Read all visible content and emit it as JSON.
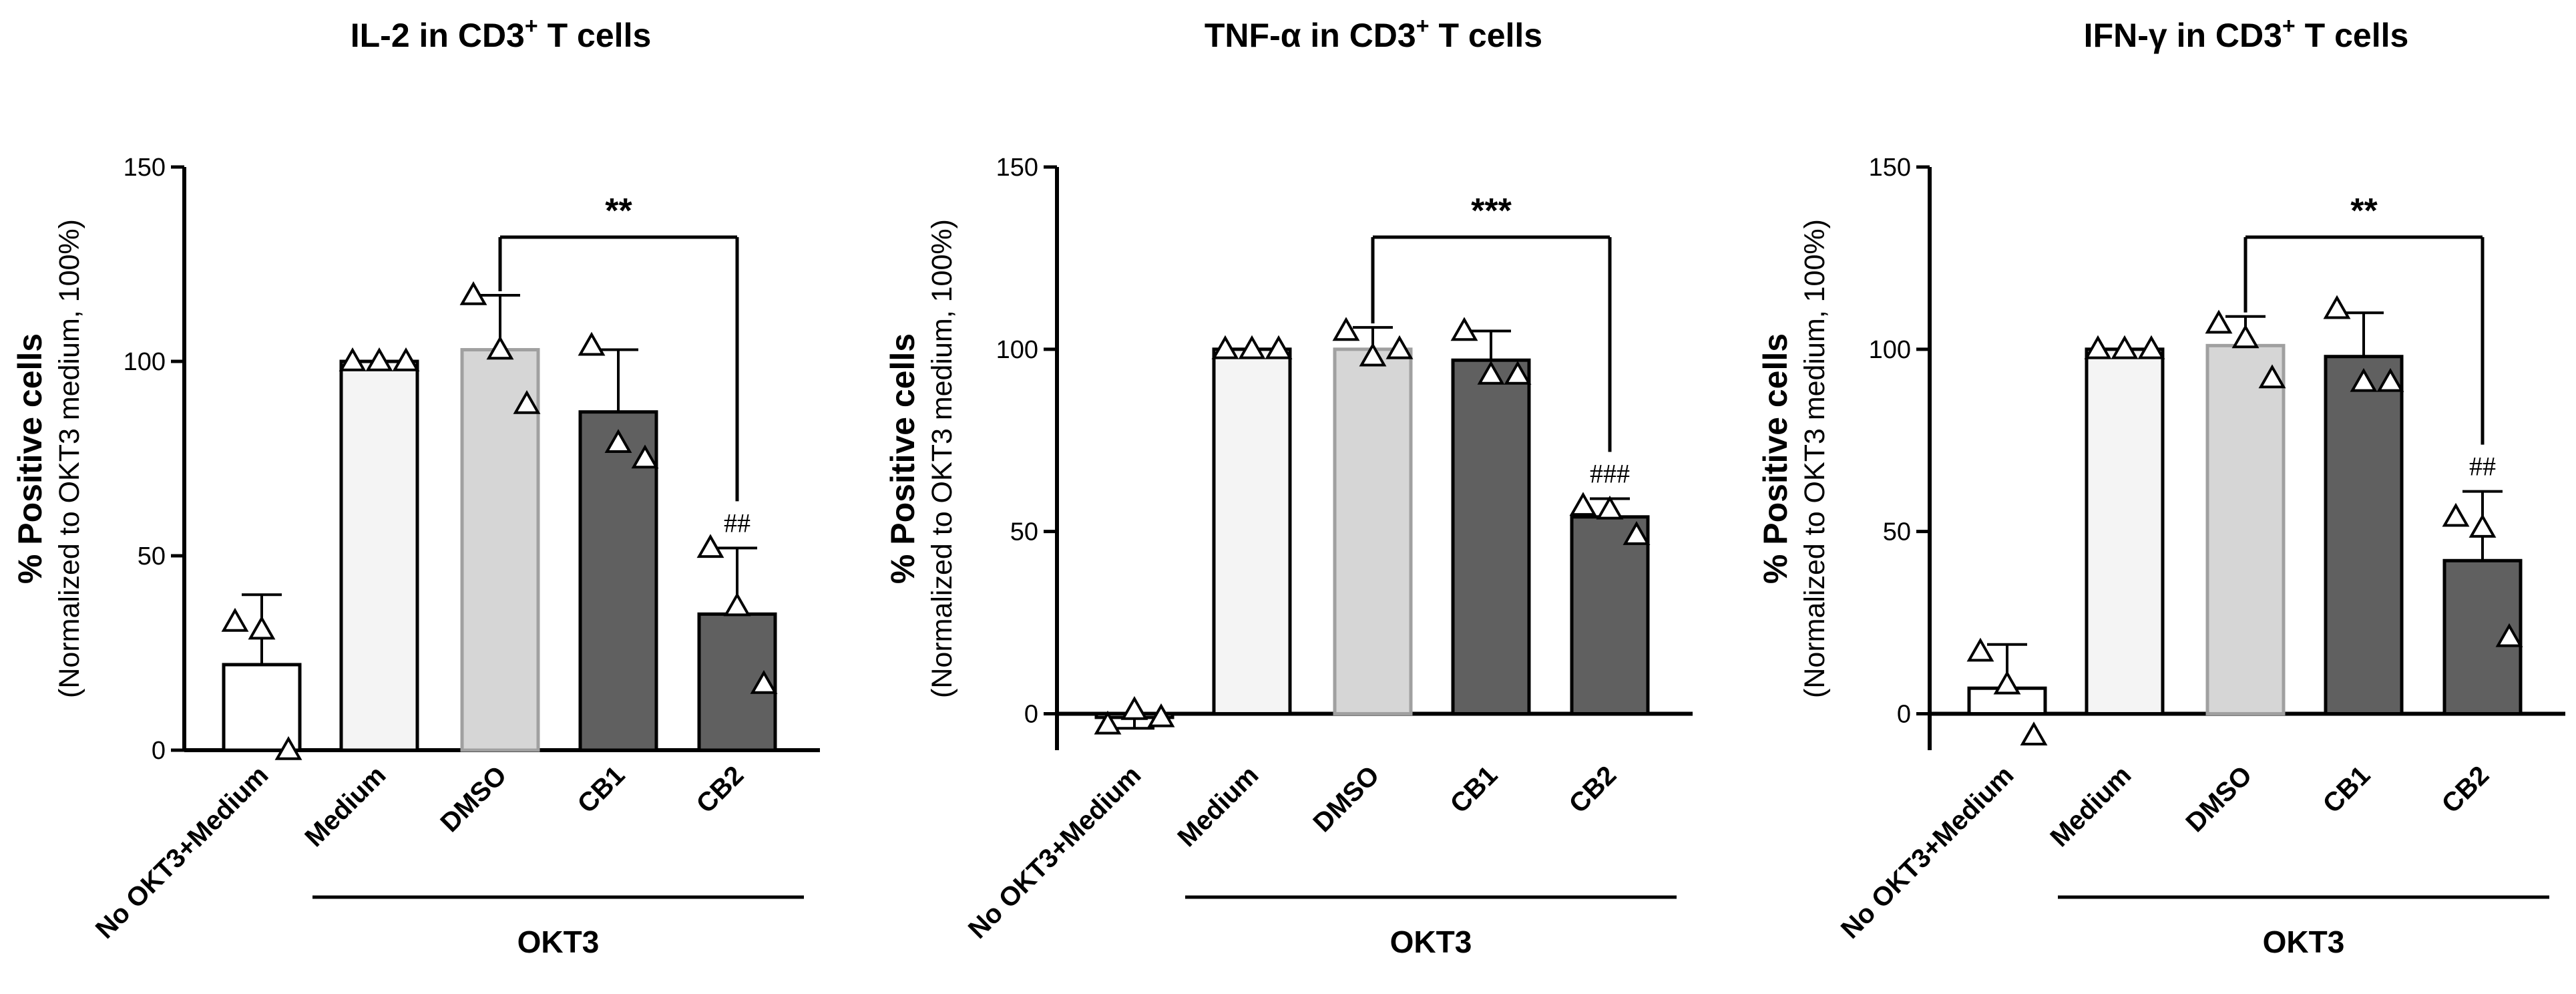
{
  "chart_data": [
    {
      "type": "bar",
      "title": "IL-2 in CD3",
      "title_sup": "+",
      "title_suffix": " T cells",
      "ylabel": "% Positive cells",
      "ylabel2": "(Normalized to OKT3 medium, 100%)",
      "ylim": [
        0,
        150
      ],
      "yticks": [
        0,
        50,
        100,
        150
      ],
      "categories": [
        "No OKT3+Medium",
        "Medium",
        "DMSO",
        "CB1",
        "CB2"
      ],
      "group_label": "OKT3",
      "group_members": [
        "Medium",
        "DMSO",
        "CB1",
        "CB2"
      ],
      "values": [
        22,
        100,
        103,
        87,
        35
      ],
      "errors": [
        18,
        0,
        14,
        16,
        17
      ],
      "points": [
        [
          33,
          31,
          0
        ],
        [
          100,
          100,
          100
        ],
        [
          117,
          103,
          89
        ],
        [
          104,
          79,
          75
        ],
        [
          52,
          37,
          17
        ]
      ],
      "bar_colors": [
        "#ffffff",
        "#f4f4f4",
        "#d6d6d6",
        "#606060",
        "#606060"
      ],
      "significance": {
        "from": "DMSO",
        "to": "CB2",
        "label": "**"
      },
      "annotation": {
        "category": "CB2",
        "label": "##"
      }
    },
    {
      "type": "bar",
      "title": "TNF-α in CD3",
      "title_sup": "+",
      "title_suffix": " T cells",
      "ylabel": "% Positive cells",
      "ylabel2": "(Normalized to OKT3 medium, 100%)",
      "ylim": [
        -10,
        150
      ],
      "yticks": [
        0,
        50,
        100,
        150
      ],
      "categories": [
        "No OKT3+Medium",
        "Medium",
        "DMSO",
        "CB1",
        "CB2"
      ],
      "group_label": "OKT3",
      "group_members": [
        "Medium",
        "DMSO",
        "CB1",
        "CB2"
      ],
      "values": [
        -1,
        100,
        100,
        97,
        54
      ],
      "errors": [
        3,
        0,
        6,
        8,
        5
      ],
      "points": [
        [
          -3,
          1,
          -1
        ],
        [
          100,
          100,
          100
        ],
        [
          105,
          98,
          100
        ],
        [
          105,
          93,
          93
        ],
        [
          57,
          56,
          49
        ]
      ],
      "bar_colors": [
        "#ffffff",
        "#f4f4f4",
        "#d6d6d6",
        "#606060",
        "#606060"
      ],
      "significance": {
        "from": "DMSO",
        "to": "CB2",
        "label": "***"
      },
      "annotation": {
        "category": "CB2",
        "label": "###"
      }
    },
    {
      "type": "bar",
      "title": "IFN-γ in CD3",
      "title_sup": "+",
      "title_suffix": " T cells",
      "ylabel": "% Positive cells",
      "ylabel2": "(Normalized to OKT3 medium, 100%)",
      "ylim": [
        -10,
        150
      ],
      "yticks": [
        0,
        50,
        100,
        150
      ],
      "categories": [
        "No OKT3+Medium",
        "Medium",
        "DMSO",
        "CB1",
        "CB2"
      ],
      "group_label": "OKT3",
      "group_members": [
        "Medium",
        "DMSO",
        "CB1",
        "CB2"
      ],
      "values": [
        7,
        100,
        101,
        98,
        42
      ],
      "errors": [
        12,
        0,
        8,
        12,
        19
      ],
      "points": [
        [
          17,
          8,
          -6
        ],
        [
          100,
          100,
          100
        ],
        [
          107,
          103,
          92
        ],
        [
          111,
          91,
          91
        ],
        [
          54,
          51,
          21
        ]
      ],
      "bar_colors": [
        "#ffffff",
        "#f4f4f4",
        "#d6d6d6",
        "#606060",
        "#606060"
      ],
      "significance": {
        "from": "DMSO",
        "to": "CB2",
        "label": "**"
      },
      "annotation": {
        "category": "CB2",
        "label": "##"
      }
    }
  ]
}
